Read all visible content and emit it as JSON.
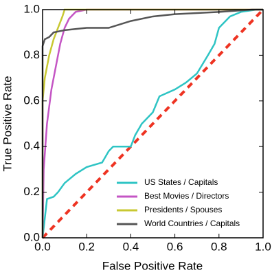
{
  "chart_data": {
    "type": "line",
    "xlabel": "False Positive Rate",
    "ylabel": "True Positive Rate",
    "xlim": [
      0,
      1
    ],
    "ylim": [
      0,
      1
    ],
    "xticks": [
      {
        "value": 0,
        "label": "0.0"
      },
      0.2,
      0.4,
      0.6,
      0.8,
      {
        "value": 1,
        "label": "1.0"
      }
    ],
    "yticks": [
      {
        "value": 0,
        "label": "0.0"
      },
      0.2,
      0.4,
      0.6,
      0.8,
      {
        "value": 1,
        "label": "1.0"
      }
    ],
    "legend": "lower right",
    "series": [
      {
        "name": "US States / Capitals",
        "color": "#2ec4c4",
        "x": [
          0,
          0.02,
          0.05,
          0.07,
          0.1,
          0.15,
          0.2,
          0.27,
          0.3,
          0.32,
          0.4,
          0.42,
          0.45,
          0.5,
          0.53,
          0.6,
          0.65,
          0.7,
          0.75,
          0.78,
          0.8,
          0.85,
          0.9,
          0.97,
          1
        ],
        "values": [
          0,
          0.17,
          0.18,
          0.2,
          0.24,
          0.28,
          0.31,
          0.33,
          0.38,
          0.4,
          0.4,
          0.45,
          0.5,
          0.55,
          0.62,
          0.65,
          0.68,
          0.72,
          0.8,
          0.85,
          0.92,
          0.97,
          0.99,
          1,
          1
        ]
      },
      {
        "name": "Best Movies / Directors",
        "color": "#c455c4",
        "x": [
          0,
          0.005,
          0.02,
          0.04,
          0.06,
          0.08,
          0.1,
          0.12,
          0.15,
          0.2,
          1
        ],
        "values": [
          0,
          0.3,
          0.5,
          0.65,
          0.75,
          0.85,
          0.92,
          0.96,
          0.99,
          1,
          1
        ]
      },
      {
        "name": "Presidents / Spouses",
        "color": "#c8c832",
        "x": [
          0,
          0,
          0.01,
          0.03,
          0.05,
          0.07,
          0.09,
          0.1,
          1
        ],
        "values": [
          0,
          0.6,
          0.7,
          0.8,
          0.87,
          0.92,
          0.97,
          1,
          1
        ]
      },
      {
        "name": "World Countries / Capitals",
        "color": "#555555",
        "x": [
          0,
          0,
          0.01,
          0.03,
          0.05,
          0.1,
          0.2,
          0.3,
          0.4,
          0.5,
          0.6,
          0.8,
          0.95,
          1
        ],
        "values": [
          0,
          0.84,
          0.87,
          0.88,
          0.9,
          0.91,
          0.92,
          0.92,
          0.95,
          0.97,
          0.98,
          0.99,
          1,
          1
        ]
      }
    ]
  }
}
